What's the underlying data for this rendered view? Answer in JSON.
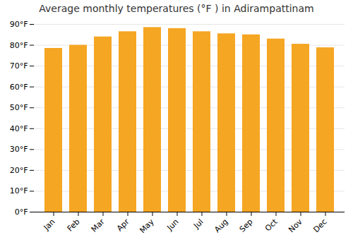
{
  "chart_data": {
    "type": "bar",
    "title": "Average monthly temperatures (°F ) in Adirampattinam",
    "categories": [
      "Jan",
      "Feb",
      "Mar",
      "Apr",
      "May",
      "Jun",
      "Jul",
      "Aug",
      "Sep",
      "Oct",
      "Nov",
      "Dec"
    ],
    "values": [
      78.5,
      80.0,
      84.0,
      86.5,
      88.5,
      88.0,
      86.5,
      85.5,
      85.0,
      83.0,
      80.5,
      78.8
    ],
    "color": "#F5A623",
    "ylim": [
      0,
      90
    ],
    "yticks": [
      {
        "value": 0,
        "label": "0°F"
      },
      {
        "value": 10,
        "label": "10°F"
      },
      {
        "value": 20,
        "label": "20°F"
      },
      {
        "value": 30,
        "label": "30°F"
      },
      {
        "value": 40,
        "label": "40°F"
      },
      {
        "value": 50,
        "label": "50°F"
      },
      {
        "value": 60,
        "label": "60°F"
      },
      {
        "value": 70,
        "label": "70°F"
      },
      {
        "value": 80,
        "label": "80°F"
      },
      {
        "value": 90,
        "label": "90°F"
      }
    ],
    "grid": true
  }
}
